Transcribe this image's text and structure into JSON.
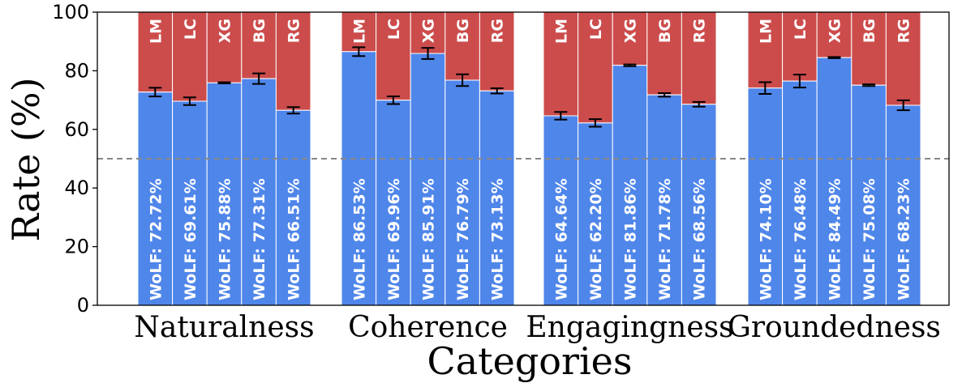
{
  "chart_data": {
    "type": "bar",
    "stacked": true,
    "title": "",
    "xlabel": "Categories",
    "ylabel": "Rate (%)",
    "ylim": [
      0,
      100
    ],
    "yticks": [
      "0",
      "20",
      "40",
      "60",
      "80",
      "100"
    ],
    "reference_line": 50,
    "colors": {
      "lower": "#4f86ea",
      "upper": "#cc4c4c",
      "reference": "#888888"
    },
    "categories": [
      {
        "name": "Naturalness",
        "bars": [
          {
            "code": "LM",
            "value": 72.72,
            "err": 1.5,
            "label": "WoLF: 72.72%"
          },
          {
            "code": "LC",
            "value": 69.61,
            "err": 1.3,
            "label": "WoLF: 69.61%"
          },
          {
            "code": "XG",
            "value": 75.88,
            "err": 0.2,
            "label": "WoLF: 75.88%"
          },
          {
            "code": "BG",
            "value": 77.31,
            "err": 1.8,
            "label": "WoLF: 77.31%"
          },
          {
            "code": "RG",
            "value": 66.51,
            "err": 1.1,
            "label": "WoLF: 66.51%"
          }
        ]
      },
      {
        "name": "Coherence",
        "bars": [
          {
            "code": "LM",
            "value": 86.53,
            "err": 1.5,
            "label": "WoLF: 86.53%"
          },
          {
            "code": "LC",
            "value": 69.96,
            "err": 1.3,
            "label": "WoLF: 69.96%"
          },
          {
            "code": "XG",
            "value": 85.91,
            "err": 1.9,
            "label": "WoLF: 85.91%"
          },
          {
            "code": "BG",
            "value": 76.79,
            "err": 2.0,
            "label": "WoLF: 76.79%"
          },
          {
            "code": "RG",
            "value": 73.13,
            "err": 0.9,
            "label": "WoLF: 73.13%"
          }
        ]
      },
      {
        "name": "Engagingness",
        "bars": [
          {
            "code": "LM",
            "value": 64.64,
            "err": 1.3,
            "label": "WoLF: 64.64%"
          },
          {
            "code": "LC",
            "value": 62.2,
            "err": 1.3,
            "label": "WoLF: 62.20%"
          },
          {
            "code": "XG",
            "value": 81.86,
            "err": 0.3,
            "label": "WoLF: 81.86%"
          },
          {
            "code": "BG",
            "value": 71.78,
            "err": 0.6,
            "label": "WoLF: 71.78%"
          },
          {
            "code": "RG",
            "value": 68.56,
            "err": 0.8,
            "label": "WoLF: 68.56%"
          }
        ]
      },
      {
        "name": "Groundedness",
        "bars": [
          {
            "code": "LM",
            "value": 74.1,
            "err": 2.0,
            "label": "WoLF: 74.10%"
          },
          {
            "code": "LC",
            "value": 76.48,
            "err": 2.2,
            "label": "WoLF: 76.48%"
          },
          {
            "code": "XG",
            "value": 84.49,
            "err": 0.2,
            "label": "WoLF: 84.49%"
          },
          {
            "code": "BG",
            "value": 75.08,
            "err": 0.3,
            "label": "WoLF: 75.08%"
          },
          {
            "code": "RG",
            "value": 68.23,
            "err": 1.7,
            "label": "WoLF: 68.23%"
          }
        ]
      }
    ]
  }
}
